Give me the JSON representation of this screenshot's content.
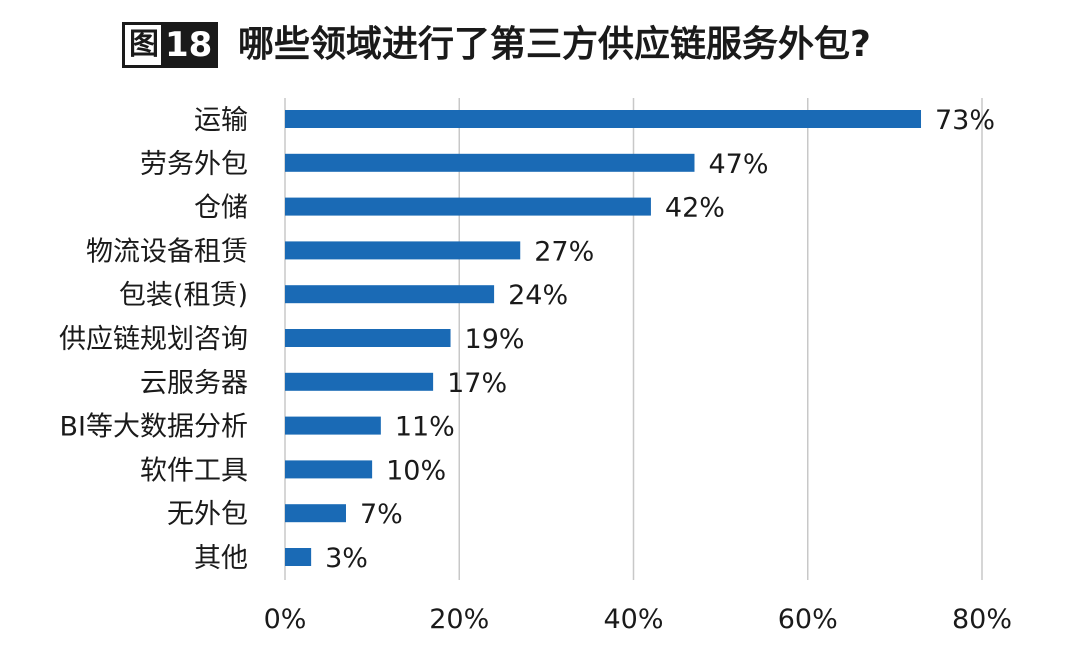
{
  "header": {
    "badge_prefix": "图",
    "badge_number": "18",
    "title": "哪些领域进行了第三方供应链服务外包?"
  },
  "colors": {
    "bar": "#1a6ab5",
    "grid": "#c8c8c8",
    "text": "#1a1a1a"
  },
  "chart_data": {
    "type": "bar",
    "orientation": "horizontal",
    "title": "哪些领域进行了第三方供应链服务外包?",
    "categories": [
      "运输",
      "劳务外包",
      "仓储",
      "物流设备租赁",
      "包装(租赁)",
      "供应链规划咨询",
      "云服务器",
      "BI等大数据分析",
      "软件工具",
      "无外包",
      "其他"
    ],
    "values": [
      73,
      47,
      42,
      27,
      24,
      19,
      17,
      11,
      10,
      7,
      3
    ],
    "value_labels": [
      "73%",
      "47%",
      "42%",
      "27%",
      "24%",
      "19%",
      "17%",
      "11%",
      "10%",
      "7%",
      "3%"
    ],
    "xlim": [
      0,
      80
    ],
    "xticks": [
      0,
      20,
      40,
      60,
      80
    ],
    "xtick_labels": [
      "0%",
      "20%",
      "40%",
      "60%",
      "80%"
    ],
    "grid": true,
    "legend": "none"
  }
}
